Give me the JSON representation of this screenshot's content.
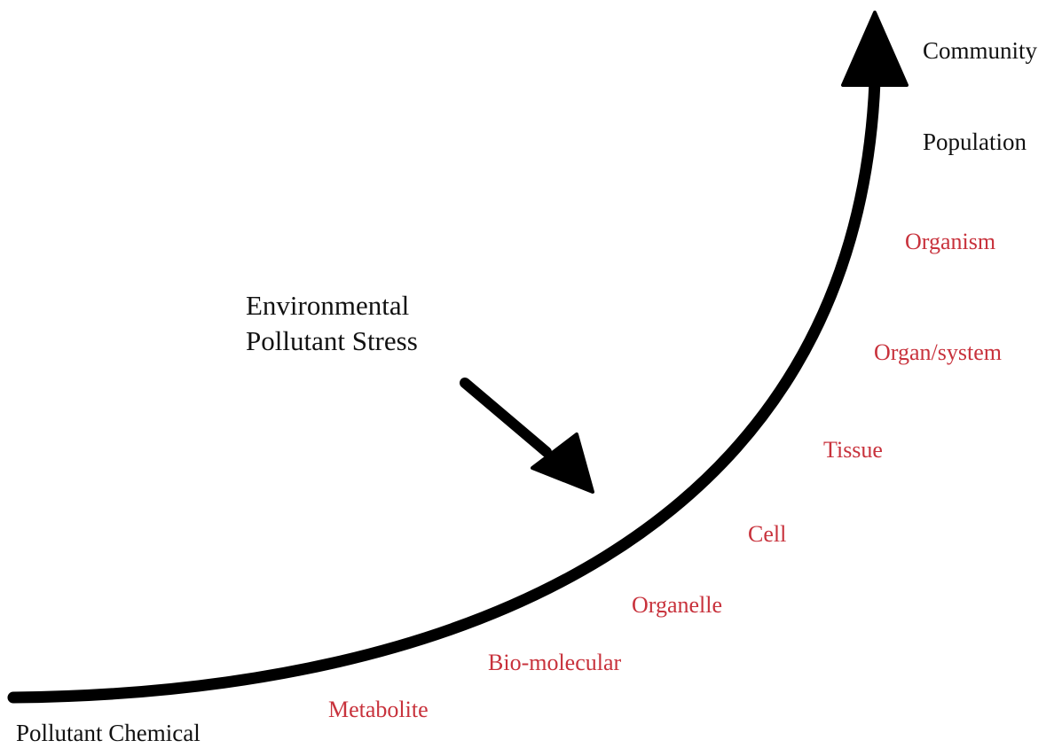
{
  "start_label": "Pollutant Chemical",
  "stress_label": {
    "line1": "Environmental",
    "line2": "Pollutant Stress"
  },
  "levels": [
    "Metabolite",
    "Bio-molecular",
    "Organelle",
    "Cell",
    "Tissue",
    "Organ/system",
    "Organism"
  ],
  "top_levels": [
    "Population",
    "Community"
  ]
}
